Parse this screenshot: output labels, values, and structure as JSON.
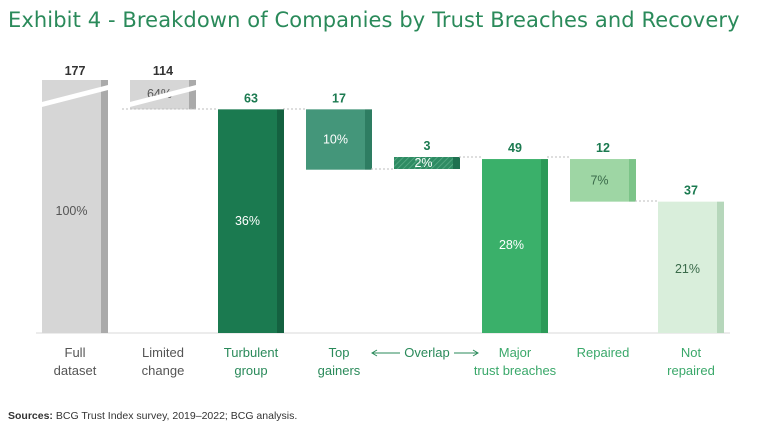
{
  "title": "Exhibit 4 - Breakdown of Companies by Trust Breaches and Recovery",
  "source": {
    "label": "Sources:",
    "text": "BCG Trust Index survey, 2019–2022; BCG analysis."
  },
  "overlap_label": "Overlap",
  "chart_data": {
    "type": "waterfall",
    "title": "Exhibit 4 - Breakdown of Companies by Trust Breaches and Recovery",
    "unit": "companies",
    "axis_break_above": 63,
    "bars": [
      {
        "name": "full-dataset",
        "label": [
          "Full",
          "dataset"
        ],
        "value": 177,
        "value_label": "177",
        "percent_label": "100%",
        "base": 0,
        "top": 177,
        "fill": "#d6d6d6",
        "side": "#aaaaaa",
        "label_color": "#555555",
        "value_color": "#333333",
        "pct_color": "#555555"
      },
      {
        "name": "limited-change",
        "label": [
          "Limited",
          "change"
        ],
        "value": 114,
        "value_label": "114",
        "percent_label": "64%",
        "base": 63,
        "top": 177,
        "fill": "#d6d6d6",
        "side": "#aaaaaa",
        "label_color": "#555555",
        "value_color": "#333333",
        "pct_color": "#555555"
      },
      {
        "name": "turbulent-group",
        "label": [
          "Turbulent",
          "group"
        ],
        "value": 63,
        "value_label": "63",
        "percent_label": "36%",
        "base": 0,
        "top": 63,
        "fill": "#1b7a50",
        "side": "#146140",
        "label_color": "#2a8a5a",
        "value_color": "#1b7a50",
        "pct_color": "#ffffff"
      },
      {
        "name": "top-gainers",
        "label": [
          "Top",
          "gainers"
        ],
        "value": 17,
        "value_label": "17",
        "percent_label": "10%",
        "base": 46,
        "top": 63,
        "fill": "#44967a",
        "side": "#2e7d62",
        "label_color": "#2a8a5a",
        "value_color": "#1b7a50",
        "pct_color": "#ffffff"
      },
      {
        "name": "overlap",
        "label": [
          "",
          ""
        ],
        "value": 3,
        "value_label": "3",
        "percent_label": "2%",
        "base": 46,
        "top": 49,
        "fill": "#2e8b63",
        "side": "#1e7050",
        "label_color": "#2a8a5a",
        "value_color": "#1b7a50",
        "pct_color": "#ffffff",
        "hatched": true
      },
      {
        "name": "major-trust-breaches",
        "label": [
          "Major",
          "trust breaches"
        ],
        "value": 49,
        "value_label": "49",
        "percent_label": "28%",
        "base": 0,
        "top": 49,
        "fill": "#3ab06a",
        "side": "#2c9a58",
        "label_color": "#3aa86a",
        "value_color": "#1b7a50",
        "pct_color": "#ffffff"
      },
      {
        "name": "repaired",
        "label": [
          "Repaired",
          ""
        ],
        "value": 12,
        "value_label": "12",
        "percent_label": "7%",
        "base": 37,
        "top": 49,
        "fill": "#9ed6a4",
        "side": "#7cc488",
        "label_color": "#3aa86a",
        "value_color": "#1b7a50",
        "pct_color": "#3a6a4a"
      },
      {
        "name": "not-repaired",
        "label": [
          "Not",
          "repaired"
        ],
        "value": 37,
        "value_label": "37",
        "percent_label": "21%",
        "base": 0,
        "top": 37,
        "fill": "#d9eedb",
        "side": "#b6d7bb",
        "label_color": "#3aa86a",
        "value_color": "#1b7a50",
        "pct_color": "#3a6a4a"
      }
    ]
  }
}
